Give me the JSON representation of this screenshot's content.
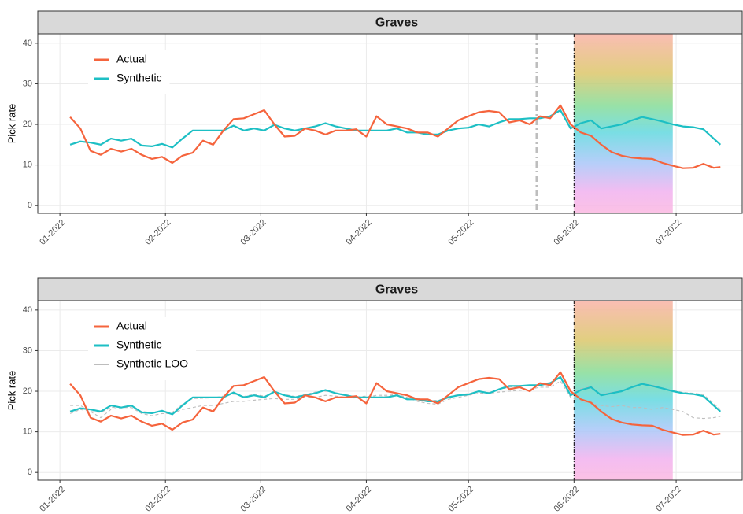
{
  "chart_data": [
    {
      "type": "line",
      "title": "Graves",
      "ylabel": "Pick rate",
      "legend": "top-left",
      "grid": true,
      "xlim": [
        -6.5,
        200.4
      ],
      "ylim": [
        -1.9,
        42.3
      ],
      "xticks": [
        {
          "value": 0,
          "label": "01-2022"
        },
        {
          "value": 31,
          "label": "02-2022"
        },
        {
          "value": 59,
          "label": "03-2022"
        },
        {
          "value": 90,
          "label": "04-2022"
        },
        {
          "value": 120,
          "label": "05-2022"
        },
        {
          "value": 151,
          "label": "06-2022"
        },
        {
          "value": 181,
          "label": "07-2022"
        }
      ],
      "yticks": [
        0,
        10,
        20,
        30,
        40
      ],
      "intervention_x": 151,
      "placebo_x": 140,
      "highlight_xlim": [
        151,
        180
      ],
      "x": [
        3,
        6,
        9,
        12,
        15,
        18,
        21,
        24,
        27,
        30,
        33,
        36,
        39,
        42,
        45,
        48,
        51,
        54,
        57,
        60,
        63,
        66,
        69,
        72,
        75,
        78,
        81,
        84,
        87,
        90,
        93,
        96,
        99,
        102,
        105,
        108,
        111,
        114,
        117,
        120,
        123,
        126,
        129,
        132,
        135,
        138,
        141,
        144,
        147,
        150,
        153,
        156,
        159,
        162,
        165,
        168,
        171,
        174,
        177,
        180,
        183,
        186,
        189,
        192,
        194
      ],
      "series": [
        {
          "name": "Actual",
          "color": "#f5643d",
          "values": [
            21.8,
            19,
            13.5,
            12.5,
            14,
            13.3,
            14,
            12.5,
            11.5,
            12,
            10.5,
            12.3,
            13,
            16,
            15,
            18.5,
            21.3,
            21.5,
            22.5,
            23.5,
            20,
            17,
            17.2,
            19,
            18.5,
            17.5,
            18.5,
            18.5,
            18.8,
            17,
            22,
            20,
            19.5,
            19,
            18,
            18,
            17,
            19,
            21,
            22,
            23,
            23.3,
            23,
            20.5,
            21,
            20,
            22,
            21.5,
            24.7,
            20,
            18,
            17.2,
            15,
            13.2,
            12.3,
            11.8,
            11.6,
            11.5,
            10.5,
            9.8,
            9.2,
            9.3,
            10.3,
            9.3,
            9.5
          ]
        },
        {
          "name": "Synthetic",
          "color": "#1dbfc4",
          "values": [
            15,
            15.8,
            15.5,
            15,
            16.5,
            16,
            16.5,
            14.8,
            14.6,
            15.2,
            14.3,
            16.5,
            18.5,
            18.5,
            18.5,
            18.5,
            19.7,
            18.5,
            19,
            18.5,
            19.9,
            19,
            18.5,
            19,
            19.5,
            20.3,
            19.5,
            19,
            18.5,
            18.5,
            18.5,
            18.5,
            19,
            18,
            18,
            17.5,
            17.5,
            18.5,
            19,
            19.2,
            20,
            19.5,
            20.5,
            21.3,
            21.3,
            21.5,
            21.5,
            22,
            23.5,
            19,
            20.3,
            21,
            19,
            19.5,
            20,
            21,
            21.8,
            21.3,
            20.7,
            20,
            19.5,
            19.3,
            18.8,
            16.5,
            15
          ]
        }
      ]
    },
    {
      "type": "line",
      "title": "Graves",
      "ylabel": "Pick rate",
      "legend": "top-left",
      "grid": true,
      "xlim": [
        -6.5,
        200.4
      ],
      "ylim": [
        -1.9,
        42.3
      ],
      "xticks": [
        {
          "value": 0,
          "label": "01-2022"
        },
        {
          "value": 31,
          "label": "02-2022"
        },
        {
          "value": 59,
          "label": "03-2022"
        },
        {
          "value": 90,
          "label": "04-2022"
        },
        {
          "value": 120,
          "label": "05-2022"
        },
        {
          "value": 151,
          "label": "06-2022"
        },
        {
          "value": 181,
          "label": "07-2022"
        }
      ],
      "yticks": [
        0,
        10,
        20,
        30,
        40
      ],
      "intervention_x": 151,
      "highlight_xlim": [
        151,
        180
      ],
      "x": [
        3,
        6,
        9,
        12,
        15,
        18,
        21,
        24,
        27,
        30,
        33,
        36,
        39,
        42,
        45,
        48,
        51,
        54,
        57,
        60,
        63,
        66,
        69,
        72,
        75,
        78,
        81,
        84,
        87,
        90,
        93,
        96,
        99,
        102,
        105,
        108,
        111,
        114,
        117,
        120,
        123,
        126,
        129,
        132,
        135,
        138,
        141,
        144,
        147,
        150,
        153,
        156,
        159,
        162,
        165,
        168,
        171,
        174,
        177,
        180,
        183,
        186,
        189,
        192,
        194
      ],
      "series": [
        {
          "name": "Actual",
          "color": "#f5643d",
          "values": [
            21.8,
            19,
            13.5,
            12.5,
            14,
            13.3,
            14,
            12.5,
            11.5,
            12,
            10.5,
            12.3,
            13,
            16,
            15,
            18.5,
            21.3,
            21.5,
            22.5,
            23.5,
            20,
            17,
            17.2,
            19,
            18.5,
            17.5,
            18.5,
            18.5,
            18.8,
            17,
            22,
            20,
            19.5,
            19,
            18,
            18,
            17,
            19,
            21,
            22,
            23,
            23.3,
            23,
            20.5,
            21,
            20,
            22,
            21.5,
            24.7,
            20,
            18,
            17.2,
            15,
            13.2,
            12.3,
            11.8,
            11.6,
            11.5,
            10.5,
            9.8,
            9.2,
            9.3,
            10.3,
            9.3,
            9.5
          ]
        },
        {
          "name": "Synthetic",
          "color": "#1dbfc4",
          "values": [
            15,
            15.8,
            15.5,
            15,
            16.5,
            16,
            16.5,
            14.8,
            14.6,
            15.2,
            14.3,
            16.5,
            18.5,
            18.5,
            18.5,
            18.5,
            19.7,
            18.5,
            19,
            18.5,
            19.9,
            19,
            18.5,
            19,
            19.5,
            20.3,
            19.5,
            19,
            18.5,
            18.5,
            18.5,
            18.5,
            19,
            18,
            18,
            17.5,
            17.5,
            18.5,
            19,
            19.2,
            20,
            19.5,
            20.5,
            21.3,
            21.3,
            21.5,
            21.5,
            22,
            23.5,
            19,
            20.3,
            21,
            19,
            19.5,
            20,
            21,
            21.8,
            21.3,
            20.7,
            20,
            19.5,
            19.3,
            18.8,
            16.5,
            15
          ]
        },
        {
          "name": "Synthetic LOO",
          "color": "#bdbdbd",
          "dash": true,
          "values": [
            14.5,
            15.5,
            15,
            14.8,
            16,
            16.2,
            16.3,
            15,
            14.8,
            15,
            14.8,
            16.8,
            18.2,
            18.3,
            18.4,
            18.8,
            19.3,
            18.7,
            19.2,
            18.8,
            19.5,
            19.2,
            18.7,
            19.2,
            19.8,
            20,
            19.6,
            19.2,
            18.6,
            18.8,
            18.6,
            18.7,
            19.1,
            18.3,
            18.2,
            17.8,
            17.7,
            18.6,
            19.2,
            19.4,
            19.9,
            19.7,
            20.4,
            21,
            21.2,
            21.4,
            21.6,
            22.2,
            23.2,
            19.3,
            20.6,
            21.2,
            19.2,
            19.7,
            20.2,
            21.1,
            21.9,
            21.5,
            20.8,
            20.2,
            19.7,
            19.5,
            19.2,
            17,
            15.5
          ]
        },
        {
          "color": "#bdbdbd",
          "dash": true,
          "values": [
            16.5,
            16.5,
            15,
            13.5,
            15.5,
            16,
            16,
            14.5,
            14,
            14.5,
            14.5,
            15.5,
            16,
            16.5,
            16.5,
            17,
            17.5,
            17.5,
            17.8,
            18,
            18.2,
            18,
            18,
            18.5,
            18.5,
            19,
            18.8,
            18.5,
            18.3,
            18.5,
            19,
            19,
            19.2,
            18.5,
            17.5,
            17,
            16.8,
            18,
            18.5,
            19,
            19.5,
            19.5,
            19.8,
            20,
            20.2,
            20.5,
            21,
            21,
            22.5,
            18.5,
            17.5,
            17,
            16.5,
            16.2,
            16.5,
            16,
            16,
            15.5,
            16,
            15.5,
            15,
            13.5,
            13.3,
            13.5,
            13.8
          ]
        }
      ]
    }
  ]
}
